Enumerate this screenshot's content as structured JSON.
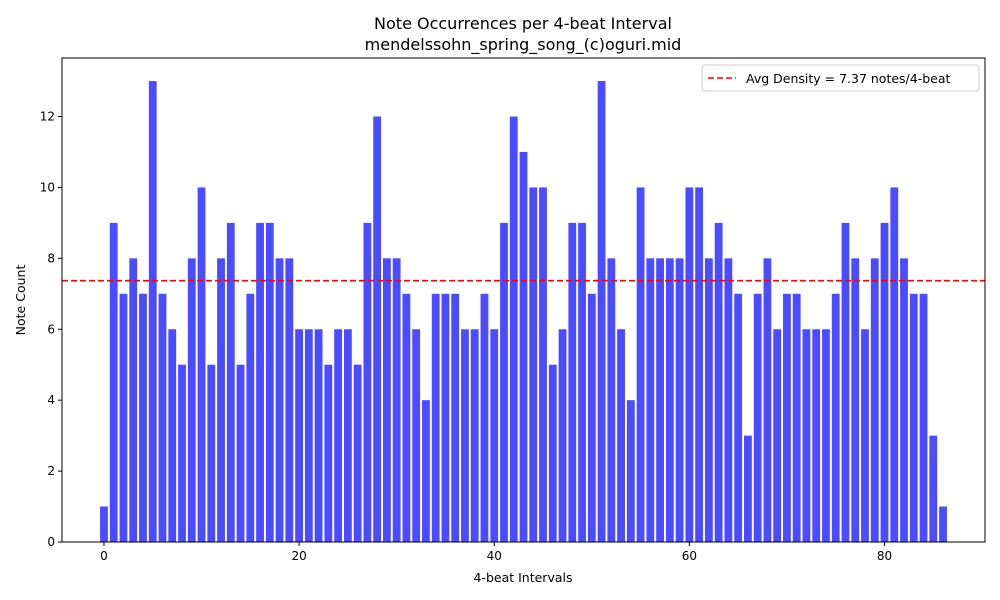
{
  "chart_data": {
    "type": "bar",
    "title": "Note Occurrences per 4-beat Interval",
    "subtitle": "mendelssohn_spring_song_(c)oguri.mid",
    "xlabel": "4-beat Intervals",
    "ylabel": "Note Count",
    "x": [
      0,
      1,
      2,
      3,
      4,
      5,
      6,
      7,
      8,
      9,
      10,
      11,
      12,
      13,
      14,
      15,
      16,
      17,
      18,
      19,
      20,
      21,
      22,
      23,
      24,
      25,
      26,
      27,
      28,
      29,
      30,
      31,
      32,
      33,
      34,
      35,
      36,
      37,
      38,
      39,
      40,
      41,
      42,
      43,
      44,
      45,
      46,
      47,
      48,
      49,
      50,
      51,
      52,
      53,
      54,
      55,
      56,
      57,
      58,
      59,
      60,
      61,
      62,
      63,
      64,
      65,
      66,
      67,
      68,
      69,
      70,
      71,
      72,
      73,
      74,
      75,
      76,
      77,
      78,
      79,
      80,
      81,
      82,
      83,
      84,
      85,
      86
    ],
    "values": [
      1,
      9,
      7,
      8,
      7,
      13,
      7,
      6,
      5,
      8,
      10,
      5,
      8,
      9,
      5,
      7,
      9,
      9,
      8,
      8,
      6,
      6,
      6,
      5,
      6,
      6,
      5,
      9,
      12,
      8,
      8,
      7,
      6,
      4,
      7,
      7,
      7,
      6,
      6,
      7,
      6,
      9,
      12,
      11,
      10,
      10,
      5,
      6,
      9,
      9,
      7,
      13,
      8,
      6,
      4,
      10,
      8,
      8,
      8,
      8,
      10,
      10,
      8,
      9,
      8,
      7,
      3,
      7,
      8,
      6,
      7,
      7,
      6,
      6,
      6,
      7,
      9,
      8,
      6,
      8,
      9,
      10,
      8,
      7,
      7,
      3,
      1
    ],
    "bar_color": "#4b4bff",
    "xlim": [
      -4.3,
      90.3
    ],
    "ylim": [
      0,
      13.65
    ],
    "xticks": [
      "0",
      "20",
      "40",
      "60",
      "80"
    ],
    "yticks": [
      "0",
      "2",
      "4",
      "6",
      "8",
      "10",
      "12"
    ],
    "average_line": {
      "value": 7.37,
      "color": "#ff0000",
      "style": "dashed"
    },
    "legend": {
      "label": "Avg Density = 7.37 notes/4-beat",
      "placement": "top-right"
    },
    "grid": false
  }
}
